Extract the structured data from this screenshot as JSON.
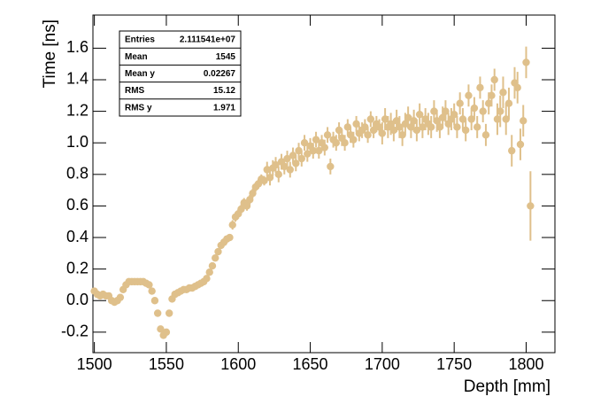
{
  "chart_data": {
    "type": "profile",
    "xlabel": "Depth [mm]",
    "ylabel": "Time [ns]",
    "xlim": [
      1499,
      1820
    ],
    "ylim": [
      -0.33,
      1.81
    ],
    "xticks": [
      1500,
      1550,
      1600,
      1650,
      1700,
      1750,
      1800
    ],
    "yticks": [
      -0.2,
      {
        "value": 0,
        "label": "0.0"
      },
      0.2,
      0.4,
      0.6,
      0.8,
      {
        "value": 1,
        "label": "1.0"
      },
      1.2,
      1.4,
      1.6
    ],
    "stats": [
      {
        "label": "Entries",
        "value": "2.111541e+07"
      },
      {
        "label": "Mean",
        "value": "1545"
      },
      {
        "label": "Mean y",
        "value": "0.02267"
      },
      {
        "label": "RMS",
        "value": "15.12"
      },
      {
        "label": "RMS y",
        "value": "1.971"
      }
    ],
    "series": [
      {
        "color": "#dfc08b",
        "x": [
          1500,
          1502,
          1504,
          1506,
          1508,
          1510,
          1512,
          1514,
          1516,
          1518,
          1520,
          1522,
          1524,
          1526,
          1528,
          1530,
          1532,
          1534,
          1536,
          1538,
          1540,
          1542,
          1544,
          1546,
          1548,
          1550,
          1552,
          1554,
          1556,
          1558,
          1560,
          1562,
          1564,
          1566,
          1568,
          1570,
          1572,
          1574,
          1576,
          1578,
          1580,
          1582,
          1584,
          1586,
          1588,
          1590,
          1592,
          1594,
          1596,
          1598,
          1600,
          1602,
          1604,
          1606,
          1608,
          1610,
          1612,
          1614,
          1616,
          1618,
          1620,
          1622,
          1624,
          1626,
          1628,
          1630,
          1632,
          1634,
          1636,
          1638,
          1640,
          1642,
          1644,
          1646,
          1648,
          1650,
          1652,
          1654,
          1656,
          1658,
          1660,
          1662,
          1664,
          1666,
          1668,
          1670,
          1672,
          1674,
          1676,
          1678,
          1680,
          1682,
          1684,
          1686,
          1688,
          1690,
          1692,
          1694,
          1696,
          1698,
          1700,
          1702,
          1704,
          1706,
          1708,
          1710,
          1712,
          1714,
          1716,
          1718,
          1720,
          1722,
          1724,
          1726,
          1728,
          1730,
          1732,
          1734,
          1736,
          1738,
          1740,
          1742,
          1744,
          1746,
          1748,
          1750,
          1752,
          1754,
          1756,
          1758,
          1760,
          1762,
          1764,
          1766,
          1768,
          1770,
          1772,
          1774,
          1776,
          1778,
          1780,
          1782,
          1784,
          1786,
          1788,
          1790,
          1792,
          1794,
          1796,
          1798,
          1800,
          1803
        ],
        "values": [
          0.06,
          0.04,
          0.03,
          0.04,
          0.03,
          0.03,
          0.0,
          -0.01,
          0.0,
          0.02,
          0.07,
          0.1,
          0.12,
          0.12,
          0.12,
          0.12,
          0.12,
          0.12,
          0.11,
          0.1,
          0.06,
          0.0,
          -0.08,
          -0.18,
          -0.22,
          -0.2,
          -0.08,
          0.01,
          0.04,
          0.05,
          0.06,
          0.07,
          0.07,
          0.08,
          0.08,
          0.09,
          0.1,
          0.11,
          0.12,
          0.14,
          0.18,
          0.22,
          0.27,
          0.31,
          0.35,
          0.37,
          0.39,
          0.4,
          0.48,
          0.53,
          0.55,
          0.58,
          0.62,
          0.6,
          0.64,
          0.68,
          0.72,
          0.74,
          0.77,
          0.76,
          0.83,
          0.78,
          0.84,
          0.86,
          0.8,
          0.88,
          0.85,
          0.9,
          0.83,
          0.92,
          0.87,
          0.95,
          0.9,
          1.0,
          0.93,
          0.98,
          0.95,
          1.02,
          0.95,
          1.0,
          0.97,
          1.05,
          0.85,
          1.02,
          1.0,
          1.08,
          1.03,
          1.0,
          1.1,
          1.05,
          1.02,
          1.12,
          1.06,
          1.08,
          1.1,
          1.05,
          1.15,
          1.08,
          1.12,
          1.1,
          1.06,
          1.15,
          1.1,
          1.12,
          1.08,
          1.14,
          1.1,
          1.05,
          1.12,
          1.16,
          1.1,
          1.14,
          1.08,
          1.18,
          1.1,
          1.15,
          1.12,
          1.1,
          1.2,
          1.14,
          1.1,
          1.16,
          1.2,
          1.12,
          1.15,
          1.18,
          1.1,
          1.25,
          1.15,
          1.08,
          1.3,
          1.15,
          1.22,
          1.1,
          1.35,
          1.2,
          1.05,
          1.25,
          1.3,
          1.4,
          1.15,
          1.2,
          1.32,
          1.15,
          1.25,
          0.95,
          1.38,
          1.35,
          0.99,
          1.14,
          1.51,
          0.6
        ],
        "errors": [
          0.01,
          0.01,
          0.01,
          0.01,
          0.01,
          0.01,
          0.01,
          0.01,
          0.01,
          0.01,
          0.01,
          0.01,
          0.01,
          0.01,
          0.01,
          0.01,
          0.01,
          0.01,
          0.01,
          0.01,
          0.01,
          0.01,
          0.01,
          0.01,
          0.01,
          0.01,
          0.01,
          0.01,
          0.01,
          0.01,
          0.01,
          0.01,
          0.01,
          0.01,
          0.01,
          0.01,
          0.01,
          0.01,
          0.01,
          0.01,
          0.02,
          0.02,
          0.02,
          0.02,
          0.02,
          0.02,
          0.02,
          0.02,
          0.03,
          0.03,
          0.03,
          0.03,
          0.03,
          0.03,
          0.03,
          0.03,
          0.03,
          0.03,
          0.03,
          0.03,
          0.05,
          0.05,
          0.05,
          0.05,
          0.05,
          0.05,
          0.05,
          0.05,
          0.05,
          0.05,
          0.05,
          0.05,
          0.05,
          0.05,
          0.05,
          0.05,
          0.05,
          0.05,
          0.05,
          0.05,
          0.05,
          0.05,
          0.05,
          0.05,
          0.05,
          0.05,
          0.05,
          0.05,
          0.05,
          0.05,
          0.05,
          0.05,
          0.05,
          0.05,
          0.05,
          0.05,
          0.05,
          0.05,
          0.05,
          0.05,
          0.07,
          0.07,
          0.07,
          0.07,
          0.07,
          0.07,
          0.07,
          0.07,
          0.07,
          0.07,
          0.07,
          0.07,
          0.07,
          0.07,
          0.07,
          0.07,
          0.07,
          0.07,
          0.07,
          0.07,
          0.07,
          0.07,
          0.07,
          0.07,
          0.07,
          0.07,
          0.07,
          0.07,
          0.07,
          0.07,
          0.07,
          0.07,
          0.07,
          0.07,
          0.07,
          0.07,
          0.07,
          0.07,
          0.07,
          0.07,
          0.1,
          0.1,
          0.1,
          0.1,
          0.1,
          0.1,
          0.1,
          0.1,
          0.1,
          0.1,
          0.1,
          0.22
        ]
      }
    ]
  }
}
